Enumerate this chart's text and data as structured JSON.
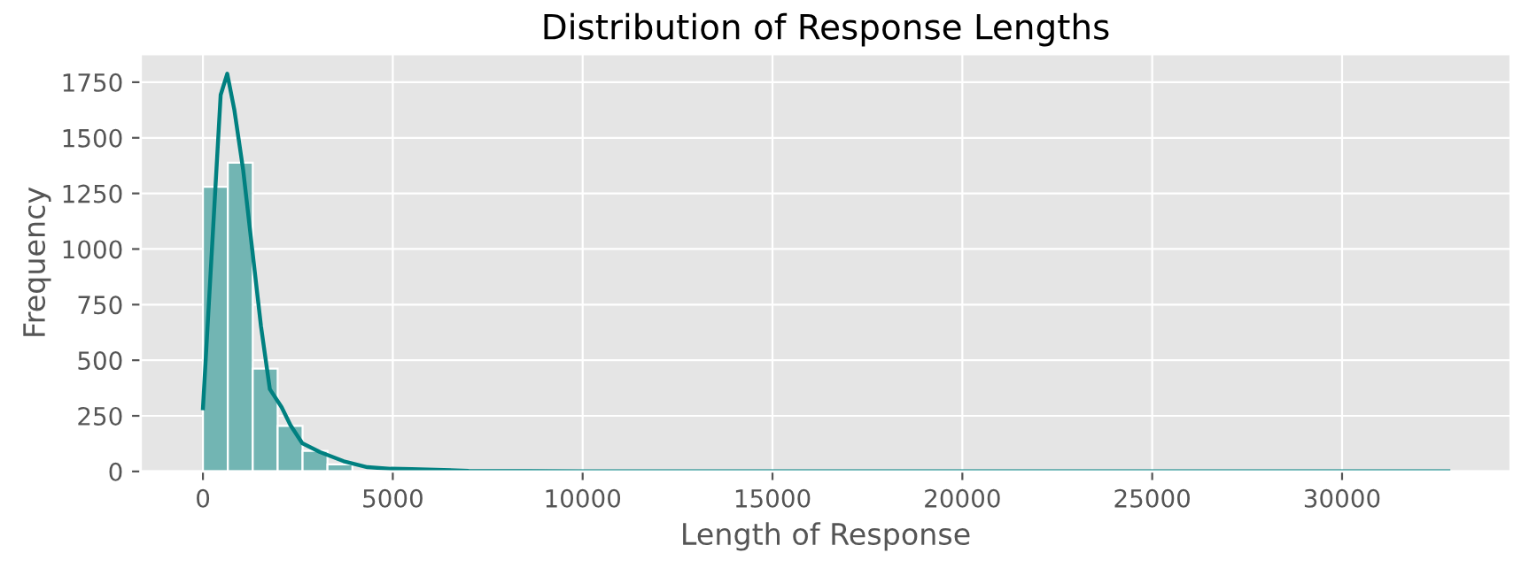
{
  "chart_data": {
    "type": "histogram",
    "title": "Distribution of Response Lengths",
    "xlabel": "Length of Response",
    "ylabel": "Frequency",
    "bins": [
      0,
      656,
      1312,
      1968,
      2624,
      3280,
      3936,
      4592,
      5248,
      5904,
      6560,
      7216,
      7872,
      8528,
      9184,
      9840,
      10496,
      11152,
      11808,
      12464,
      13120,
      13776,
      14432,
      15088,
      15744,
      16400,
      17056,
      17712,
      18368,
      19024,
      19680,
      20336,
      20992,
      21648,
      22304,
      22960,
      23616,
      24272,
      24928,
      25584,
      26240,
      26896,
      27552,
      28208,
      28864,
      29520,
      30176,
      30832,
      31488,
      32144,
      32800
    ],
    "values": [
      1280,
      1388,
      462,
      205,
      92,
      32,
      null,
      null,
      4,
      2,
      1,
      1,
      0,
      0,
      0,
      0,
      0,
      0,
      0,
      0,
      0,
      0,
      0,
      0,
      0,
      0,
      0,
      0,
      0,
      0,
      0,
      0,
      0,
      0,
      0,
      0,
      0,
      0,
      0,
      0,
      0,
      0,
      0,
      0,
      0,
      0,
      0,
      0,
      0,
      1
    ],
    "color": "#72b5b3",
    "series": [
      {
        "type": "line",
        "color": "#008080",
        "x": [
          0,
          467,
          640,
          827,
          1060,
          1294,
          1528,
          1762,
          2072,
          2304,
          2617,
          3084,
          3706,
          4330,
          4950,
          5500,
          7000,
          10000,
          15000,
          20000,
          25000,
          30000,
          32800
        ],
        "values": [
          284,
          1693,
          1788,
          1626,
          1355,
          1004,
          654,
          370,
          289,
          208,
          127,
          87,
          46,
          19,
          12,
          10,
          3,
          1,
          1,
          1,
          1,
          1,
          1
        ]
      }
    ],
    "xlim": [
      -1640,
      34440
    ],
    "ylim": [
      0,
      1877
    ],
    "xticks": [
      0,
      5000,
      10000,
      15000,
      20000,
      25000,
      30000
    ],
    "yticks": [
      0,
      250,
      500,
      750,
      1000,
      1250,
      1500,
      1750
    ],
    "grid": true
  }
}
